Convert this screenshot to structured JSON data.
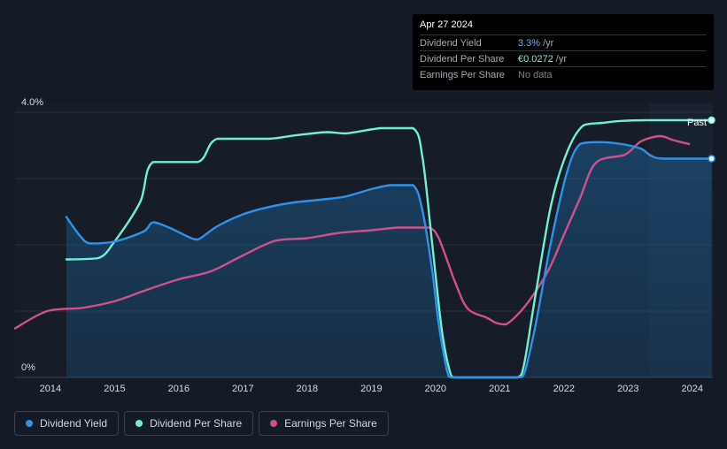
{
  "tooltip": {
    "date": "Apr 27 2024",
    "rows": [
      {
        "label": "Dividend Yield",
        "value": "3.3%",
        "unit": "/yr"
      },
      {
        "label": "Dividend Per Share",
        "value": "€0.0272",
        "unit": "/yr"
      },
      {
        "label": "Earnings Per Share",
        "value": "No data",
        "unit": ""
      }
    ]
  },
  "colors": {
    "dividend_yield": "#2e93e8",
    "dividend_per_share": "#6ff0d4",
    "earnings_per_share": "#d1508c",
    "background": "#151b26"
  },
  "chart_data": {
    "type": "line",
    "title": "",
    "xlabel": "",
    "ylabel": "",
    "ylim": [
      0,
      4.0
    ],
    "xlim": [
      2013.45,
      2024.32
    ],
    "y_tick_labels": [
      "4.0%",
      "0%"
    ],
    "x_ticks": [
      2014,
      2015,
      2016,
      2017,
      2018,
      2019,
      2020,
      2021,
      2022,
      2023,
      2024
    ],
    "x_tick_labels": [
      "2014",
      "2015",
      "2016",
      "2017",
      "2018",
      "2019",
      "2020",
      "2021",
      "2022",
      "2023",
      "2024"
    ],
    "past_label": "Past",
    "forecast_start": 2023.33,
    "series": [
      {
        "name": "Dividend Yield",
        "key": "dividend_yield",
        "x": [
          2014.25,
          2014.45,
          2014.62,
          2015.0,
          2015.45,
          2015.6,
          2015.85,
          2016.15,
          2016.3,
          2016.6,
          2017.0,
          2017.4,
          2017.8,
          2018.2,
          2018.6,
          2019.0,
          2019.3,
          2019.65,
          2019.8,
          2019.95,
          2020.05,
          2020.18,
          2020.25,
          2020.6,
          2021.0,
          2021.3,
          2021.38,
          2021.55,
          2021.8,
          2022.05,
          2022.25,
          2022.55,
          2022.9,
          2023.2,
          2023.35,
          2023.55,
          2024.3
        ],
        "y": [
          2.42,
          2.15,
          2.02,
          2.05,
          2.2,
          2.34,
          2.26,
          2.12,
          2.08,
          2.28,
          2.46,
          2.57,
          2.64,
          2.68,
          2.73,
          2.84,
          2.9,
          2.9,
          2.5,
          1.6,
          0.8,
          0.1,
          0.0,
          0.0,
          0.0,
          0.0,
          0.05,
          0.75,
          2.05,
          3.1,
          3.52,
          3.55,
          3.52,
          3.45,
          3.35,
          3.3,
          3.3
        ]
      },
      {
        "name": "Dividend Per Share",
        "key": "dividend_per_share",
        "x": [
          2014.25,
          2014.75,
          2015.0,
          2015.4,
          2015.6,
          2016.3,
          2016.6,
          2017.4,
          2017.8,
          2018.3,
          2018.6,
          2019.15,
          2019.65,
          2019.8,
          2019.95,
          2020.1,
          2020.22,
          2020.3,
          2020.6,
          2021.0,
          2021.28,
          2021.38,
          2021.55,
          2021.8,
          2022.05,
          2022.3,
          2022.6,
          2022.9,
          2023.3,
          2024.3
        ],
        "y": [
          1.78,
          1.8,
          2.05,
          2.65,
          3.25,
          3.25,
          3.6,
          3.6,
          3.65,
          3.7,
          3.68,
          3.76,
          3.76,
          3.3,
          2.0,
          0.7,
          0.1,
          0.0,
          0.0,
          0.0,
          0.0,
          0.2,
          1.2,
          2.6,
          3.4,
          3.8,
          3.84,
          3.87,
          3.88,
          3.88
        ]
      },
      {
        "name": "Earnings Per Share",
        "key": "earnings_per_share",
        "x": [
          2013.45,
          2013.95,
          2014.5,
          2015.0,
          2015.5,
          2016.0,
          2016.5,
          2017.0,
          2017.5,
          2018.0,
          2018.5,
          2019.0,
          2019.4,
          2019.65,
          2019.9,
          2020.05,
          2020.3,
          2020.5,
          2020.8,
          2020.95,
          2021.1,
          2021.4,
          2021.75,
          2022.0,
          2022.25,
          2022.5,
          2022.95,
          2023.2,
          2023.5,
          2023.7,
          2023.95
        ],
        "y": [
          0.74,
          1.0,
          1.05,
          1.15,
          1.32,
          1.48,
          1.6,
          1.84,
          2.06,
          2.1,
          2.18,
          2.22,
          2.26,
          2.26,
          2.26,
          2.1,
          1.45,
          1.04,
          0.9,
          0.82,
          0.8,
          1.08,
          1.6,
          2.15,
          2.7,
          3.24,
          3.36,
          3.56,
          3.64,
          3.58,
          3.52
        ]
      }
    ],
    "endpoints": [
      {
        "key": "dividend_per_share",
        "x": 2024.3,
        "y": 3.88
      },
      {
        "key": "dividend_yield",
        "x": 2024.3,
        "y": 3.3
      }
    ],
    "legend_position": "bottom-left",
    "grid": true
  },
  "legend": [
    {
      "label": "Dividend Yield",
      "key": "dividend_yield"
    },
    {
      "label": "Dividend Per Share",
      "key": "dividend_per_share"
    },
    {
      "label": "Earnings Per Share",
      "key": "earnings_per_share"
    }
  ]
}
